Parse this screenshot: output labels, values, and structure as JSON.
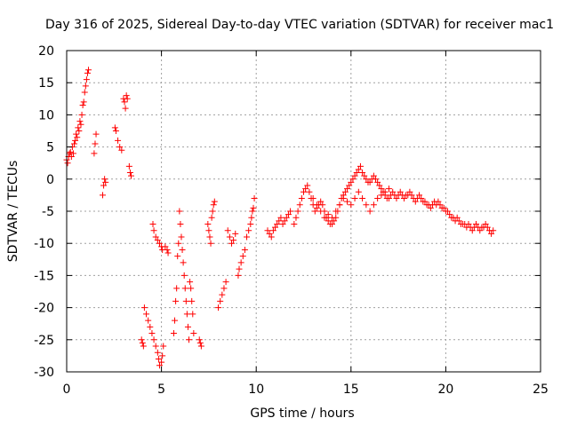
{
  "chart_data": {
    "type": "scatter",
    "title": "Day 316 of 2025, Sidereal Day-to-day VTEC variation (SDTVAR) for receiver mac1",
    "xlabel": "GPS time / hours",
    "ylabel": "SDTVAR / TECUs",
    "xlim": [
      0,
      25
    ],
    "ylim": [
      -30,
      20
    ],
    "grid": true,
    "marker": "plus",
    "color": "#ff0000",
    "xticks": [
      0,
      5,
      10,
      15,
      20,
      25
    ],
    "xtick_labels": [
      "0",
      "5",
      "10",
      "15",
      "20",
      "25"
    ],
    "yticks": [
      -30,
      -25,
      -20,
      -15,
      -10,
      -5,
      0,
      5,
      10,
      15,
      20
    ],
    "ytick_labels": [
      "-30",
      "-25",
      "-20",
      "-15",
      "-10",
      "-5",
      "0",
      "5",
      "10",
      "15",
      "20"
    ],
    "series": [
      {
        "name": "SDTVAR",
        "x": [
          0.0,
          0.05,
          0.1,
          0.15,
          0.2,
          0.25,
          0.3,
          0.35,
          0.4,
          0.45,
          0.5,
          0.55,
          0.6,
          0.65,
          0.7,
          0.75,
          0.8,
          0.85,
          0.9,
          0.95,
          1.0,
          1.05,
          1.1,
          1.15,
          1.45,
          1.5,
          1.55,
          1.9,
          1.95,
          2.0,
          2.05,
          2.55,
          2.6,
          2.7,
          2.8,
          2.9,
          3.0,
          3.05,
          3.1,
          3.15,
          3.2,
          3.3,
          3.35,
          3.4,
          3.95,
          4.0,
          4.05,
          4.1,
          4.2,
          4.3,
          4.4,
          4.5,
          4.6,
          4.7,
          4.8,
          4.85,
          4.9,
          5.0,
          5.05,
          5.1,
          4.55,
          4.6,
          4.7,
          4.8,
          4.9,
          5.0,
          5.05,
          5.2,
          5.3,
          5.35,
          5.65,
          5.7,
          5.75,
          5.8,
          5.85,
          5.9,
          5.95,
          6.0,
          6.05,
          6.1,
          6.15,
          6.2,
          6.25,
          6.3,
          6.35,
          6.4,
          6.45,
          6.5,
          6.55,
          6.6,
          6.65,
          6.7,
          7.0,
          7.05,
          7.1,
          7.45,
          7.5,
          7.55,
          7.6,
          7.65,
          7.7,
          7.75,
          7.8,
          8.0,
          8.1,
          8.2,
          8.3,
          8.4,
          8.5,
          8.6,
          8.7,
          8.8,
          8.9,
          9.05,
          9.1,
          9.2,
          9.3,
          9.4,
          9.5,
          9.6,
          9.7,
          9.75,
          9.8,
          9.85,
          9.9,
          10.6,
          10.7,
          10.8,
          10.9,
          11.0,
          11.1,
          11.2,
          11.3,
          11.4,
          11.5,
          11.6,
          11.7,
          11.8,
          12.0,
          12.1,
          12.2,
          12.3,
          12.4,
          12.5,
          12.6,
          12.7,
          12.8,
          12.9,
          13.0,
          13.1,
          13.2,
          13.3,
          13.4,
          13.5,
          13.6,
          13.7,
          13.8,
          13.9,
          14.0,
          14.1,
          14.2,
          14.3,
          14.4,
          14.5,
          14.6,
          14.7,
          14.8,
          14.9,
          15.0,
          15.1,
          15.2,
          15.3,
          15.4,
          15.5,
          15.6,
          15.7,
          15.8,
          15.9,
          16.0,
          16.1,
          16.2,
          16.3,
          16.4,
          16.5,
          16.6,
          16.7,
          16.8,
          16.9,
          17.0,
          17.1,
          17.2,
          17.3,
          17.4,
          17.5,
          17.6,
          17.7,
          17.8,
          17.9,
          18.0,
          18.1,
          18.2,
          18.3,
          18.4,
          18.5,
          18.6,
          18.7,
          18.8,
          18.9,
          19.0,
          19.1,
          19.2,
          19.3,
          19.4,
          19.5,
          19.6,
          19.7,
          19.8,
          19.9,
          20.0,
          20.1,
          20.2,
          20.3,
          20.4,
          20.5,
          20.6,
          20.7,
          20.8,
          20.9,
          21.0,
          21.1,
          21.2,
          21.3,
          21.4,
          21.5,
          21.6,
          21.7,
          21.8,
          21.9,
          22.0,
          22.1,
          22.2,
          22.3,
          22.4,
          22.5,
          13.0,
          13.2,
          13.4,
          13.6,
          13.8,
          14.0,
          14.2,
          14.4,
          14.6,
          14.8,
          15.0,
          15.2,
          15.4,
          15.6,
          15.8,
          16.0,
          16.2,
          16.4,
          16.6,
          16.8,
          17.0
        ],
        "y": [
          3.0,
          2.5,
          3.5,
          4.0,
          4.2,
          3.5,
          5.0,
          4.0,
          5.5,
          6.0,
          7.0,
          6.5,
          8.0,
          7.5,
          9.0,
          8.5,
          10.0,
          11.5,
          12.0,
          13.5,
          14.5,
          15.5,
          16.5,
          17.0,
          4.0,
          5.5,
          7.0,
          -2.5,
          -1.0,
          0.0,
          -0.5,
          8.0,
          7.5,
          6.0,
          5.0,
          4.5,
          12.5,
          12.0,
          11.0,
          13.0,
          12.5,
          2.0,
          1.0,
          0.5,
          -25.0,
          -25.5,
          -26.0,
          -20.0,
          -21.0,
          -22.0,
          -23.0,
          -24.0,
          -25.0,
          -26.0,
          -27.0,
          -28.0,
          -29.0,
          -28.5,
          -27.5,
          -26.0,
          -7.0,
          -8.0,
          -9.0,
          -9.5,
          -10.0,
          -10.5,
          -11.0,
          -10.5,
          -11.0,
          -11.5,
          -24.0,
          -22.0,
          -19.0,
          -17.0,
          -12.0,
          -10.0,
          -5.0,
          -7.0,
          -9.0,
          -11.0,
          -13.0,
          -15.0,
          -17.0,
          -19.0,
          -21.0,
          -23.0,
          -25.0,
          -16.0,
          -17.0,
          -19.0,
          -21.0,
          -24.0,
          -25.0,
          -25.5,
          -26.0,
          -7.0,
          -8.0,
          -9.0,
          -10.0,
          -6.0,
          -5.0,
          -4.0,
          -3.5,
          -20.0,
          -19.0,
          -18.0,
          -17.0,
          -16.0,
          -8.0,
          -9.0,
          -10.0,
          -9.5,
          -8.5,
          -15.0,
          -14.0,
          -13.0,
          -12.0,
          -11.0,
          -9.0,
          -8.0,
          -7.0,
          -6.0,
          -5.0,
          -4.5,
          -3.0,
          -8.0,
          -8.5,
          -9.0,
          -8.0,
          -7.5,
          -7.0,
          -6.5,
          -6.0,
          -7.0,
          -6.5,
          -6.0,
          -5.5,
          -5.0,
          -7.0,
          -6.0,
          -5.0,
          -4.0,
          -3.0,
          -2.0,
          -1.5,
          -1.0,
          -2.0,
          -3.0,
          -4.0,
          -5.0,
          -4.5,
          -4.0,
          -3.5,
          -4.0,
          -5.0,
          -6.0,
          -6.5,
          -7.0,
          -7.0,
          -6.5,
          -6.0,
          -5.0,
          -4.0,
          -3.0,
          -2.5,
          -2.0,
          -1.5,
          -1.0,
          -0.5,
          0.0,
          0.5,
          1.0,
          1.5,
          2.0,
          1.0,
          0.5,
          0.0,
          -0.5,
          -0.5,
          0.0,
          0.5,
          0.0,
          -0.5,
          -1.0,
          -1.5,
          -2.0,
          -2.5,
          -3.0,
          -3.0,
          -2.5,
          -2.0,
          -2.5,
          -3.0,
          -2.5,
          -2.0,
          -2.5,
          -3.0,
          -2.5,
          -2.5,
          -2.0,
          -2.5,
          -3.0,
          -3.5,
          -3.0,
          -2.5,
          -3.0,
          -3.5,
          -3.5,
          -4.0,
          -4.0,
          -4.5,
          -4.0,
          -3.5,
          -4.0,
          -3.5,
          -4.0,
          -4.5,
          -4.5,
          -5.0,
          -5.0,
          -5.5,
          -6.0,
          -6.0,
          -6.5,
          -6.0,
          -6.5,
          -7.0,
          -7.0,
          -7.0,
          -7.5,
          -7.0,
          -7.5,
          -8.0,
          -7.5,
          -7.0,
          -7.5,
          -8.0,
          -7.5,
          -7.5,
          -7.0,
          -7.5,
          -8.0,
          -8.5,
          -8.0,
          -3.0,
          -4.0,
          -5.0,
          -6.0,
          -5.5,
          -6.0,
          -5.0,
          -4.0,
          -3.0,
          -3.5,
          -4.0,
          -3.0,
          -2.0,
          -3.0,
          -4.0,
          -5.0,
          -4.0,
          -3.0,
          -2.5,
          -2.0,
          -1.5
        ]
      }
    ]
  }
}
